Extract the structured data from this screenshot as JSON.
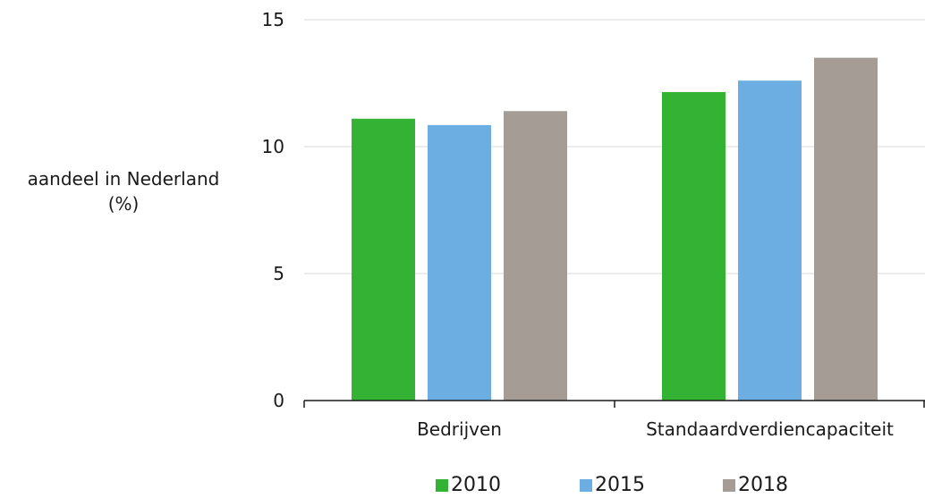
{
  "chart_data": {
    "type": "bar",
    "categories": [
      "Bedrijven",
      "Standaardverdiencapaciteit"
    ],
    "series": [
      {
        "name": "2010",
        "values": [
          11.1,
          12.15
        ],
        "color": "#34b233"
      },
      {
        "name": "2015",
        "values": [
          10.85,
          12.6
        ],
        "color": "#6cade2"
      },
      {
        "name": "2018",
        "values": [
          11.4,
          13.5
        ],
        "color": "#a59d95"
      }
    ],
    "ylabel_line1": "aandeel in Nederland",
    "ylabel_line2": "(%)",
    "ylim": [
      0,
      15
    ],
    "yticks": [
      0,
      5,
      10,
      15
    ],
    "grid": true,
    "legend_position": "bottom"
  }
}
